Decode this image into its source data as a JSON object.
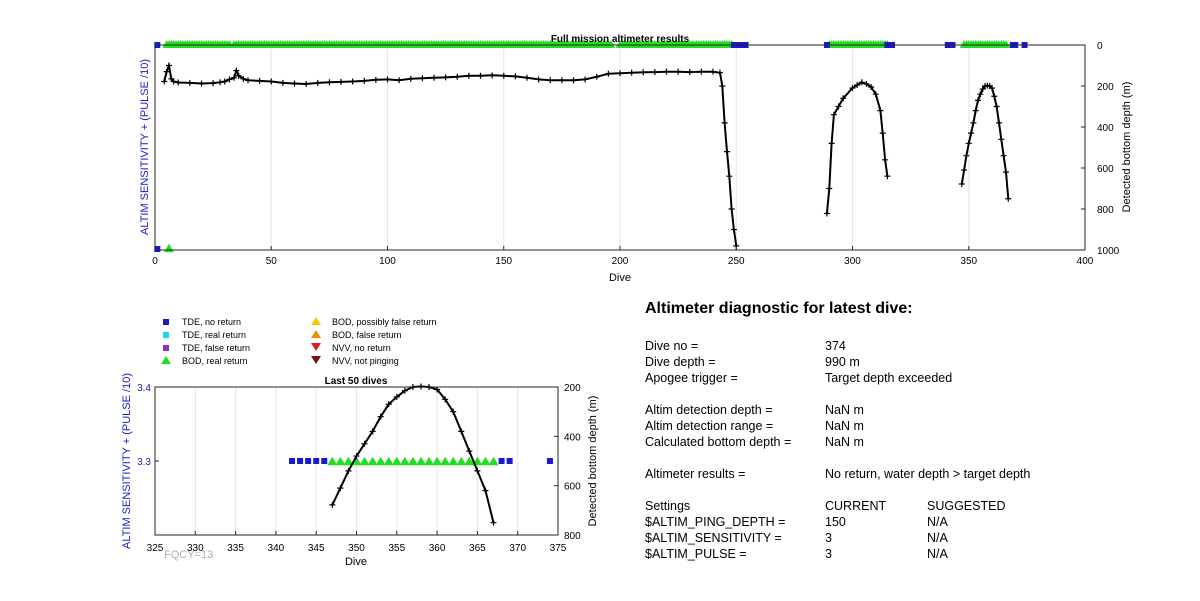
{
  "chart_data": [
    {
      "type": "line",
      "title": "Full mission altimeter results",
      "xlabel": "Dive",
      "ylabel_left": "ALTIM SENSITIVITY + (PULSE /10)",
      "ylabel_right": "Detected bottom depth (m)",
      "xlim": [
        0,
        400
      ],
      "ylim_right": [
        1000,
        0
      ],
      "x_ticks": [
        "0",
        "50",
        "100",
        "150",
        "200",
        "250",
        "300",
        "350",
        "400"
      ],
      "y_right_ticks": [
        "0",
        "200",
        "400",
        "600",
        "800",
        "1000"
      ],
      "grid": "vertical",
      "series": [
        {
          "name": "Detected bottom depth",
          "color": "#000000",
          "segments": [
            [
              [
                4,
                178
              ],
              [
                5,
                130
              ],
              [
                6,
                100
              ],
              [
                7,
                165
              ],
              [
                8,
                178
              ],
              [
                10,
                183
              ],
              [
                15,
                185
              ],
              [
                20,
                188
              ],
              [
                25,
                186
              ],
              [
                28,
                182
              ],
              [
                30,
                178
              ],
              [
                32,
                168
              ],
              [
                34,
                160
              ],
              [
                35,
                125
              ],
              [
                36,
                150
              ],
              [
                38,
                165
              ],
              [
                40,
                172
              ],
              [
                45,
                175
              ],
              [
                50,
                178
              ],
              [
                55,
                185
              ],
              [
                60,
                188
              ],
              [
                65,
                190
              ],
              [
                70,
                185
              ],
              [
                75,
                182
              ],
              [
                80,
                180
              ],
              [
                85,
                178
              ],
              [
                90,
                175
              ],
              [
                95,
                170
              ],
              [
                100,
                168
              ],
              [
                105,
                172
              ],
              [
                110,
                165
              ],
              [
                115,
                162
              ],
              [
                120,
                160
              ],
              [
                125,
                158
              ],
              [
                130,
                155
              ],
              [
                135,
                150
              ],
              [
                140,
                150
              ],
              [
                145,
                148
              ],
              [
                150,
                150
              ],
              [
                155,
                153
              ],
              [
                160,
                160
              ],
              [
                165,
                168
              ],
              [
                170,
                172
              ],
              [
                175,
                172
              ],
              [
                180,
                172
              ],
              [
                185,
                168
              ],
              [
                190,
                155
              ],
              [
                195,
                140
              ],
              [
                200,
                138
              ],
              [
                205,
                135
              ],
              [
                210,
                133
              ],
              [
                215,
                132
              ],
              [
                220,
                130
              ],
              [
                225,
                130
              ],
              [
                230,
                132
              ],
              [
                235,
                130
              ],
              [
                240,
                130
              ],
              [
                243,
                135
              ],
              [
                244,
                200
              ],
              [
                245,
                380
              ],
              [
                246,
                520
              ],
              [
                247,
                640
              ],
              [
                248,
                800
              ],
              [
                249,
                900
              ],
              [
                250,
                980
              ]
            ],
            [
              [
                289,
                822
              ],
              [
                290,
                700
              ],
              [
                291,
                480
              ],
              [
                292,
                340
              ],
              [
                294,
                300
              ],
              [
                296,
                260
              ],
              [
                300,
                210
              ],
              [
                302,
                195
              ],
              [
                304,
                182
              ],
              [
                306,
                190
              ],
              [
                308,
                205
              ],
              [
                310,
                240
              ],
              [
                312,
                320
              ],
              [
                313,
                430
              ],
              [
                314,
                560
              ],
              [
                315,
                640
              ]
            ],
            [
              [
                347,
                678
              ],
              [
                348,
                610
              ],
              [
                349,
                540
              ],
              [
                350,
                480
              ],
              [
                351,
                430
              ],
              [
                352,
                380
              ],
              [
                353,
                320
              ],
              [
                354,
                270
              ],
              [
                355,
                240
              ],
              [
                356,
                215
              ],
              [
                357,
                200
              ],
              [
                358,
                198
              ],
              [
                359,
                200
              ],
              [
                360,
                210
              ],
              [
                361,
                250
              ],
              [
                362,
                300
              ],
              [
                363,
                380
              ],
              [
                364,
                460
              ],
              [
                365,
                540
              ],
              [
                366,
                620
              ],
              [
                367,
                750
              ]
            ]
          ]
        },
        {
          "name": "BOD, real return",
          "color": "#22dd22",
          "x_ranges": [
            [
              5,
              32
            ],
            [
              34,
              196
            ],
            [
              200,
              248
            ],
            [
              290,
              315
            ],
            [
              348,
              366
            ]
          ],
          "extra_x": [
            6
          ],
          "y_depth": 0
        },
        {
          "name": "TDE, no return",
          "color": "#1a1acc",
          "x": [
            1,
            249,
            250,
            251,
            252,
            253,
            254,
            289,
            315,
            316,
            317,
            341,
            342,
            343,
            369,
            370,
            374
          ],
          "y_depth": 0
        }
      ]
    },
    {
      "type": "line",
      "title": "Last 50 dives",
      "xlabel": "Dive",
      "ylabel_left": "ALTIM SENSITIVITY + (PULSE /10)",
      "ylabel_right": "Detected bottom depth (m)",
      "xlim": [
        325,
        375
      ],
      "ylim_left": [
        3.2,
        3.4
      ],
      "ylim_right": [
        800,
        200
      ],
      "x_ticks": [
        "325",
        "330",
        "335",
        "340",
        "345",
        "350",
        "355",
        "360",
        "365",
        "370",
        "375"
      ],
      "y_left_ticks": [
        "3.3",
        "3.4"
      ],
      "y_right_ticks": [
        "200",
        "400",
        "600",
        "800"
      ],
      "grid": "vertical",
      "series": [
        {
          "name": "Detected bottom depth",
          "color": "#000000",
          "points": [
            [
              347,
              678
            ],
            [
              348,
              610
            ],
            [
              349,
              540
            ],
            [
              350,
              480
            ],
            [
              351,
              430
            ],
            [
              352,
              380
            ],
            [
              353,
              320
            ],
            [
              354,
              270
            ],
            [
              355,
              240
            ],
            [
              356,
              215
            ],
            [
              357,
              200
            ],
            [
              358,
              198
            ],
            [
              359,
              200
            ],
            [
              360,
              210
            ],
            [
              361,
              250
            ],
            [
              362,
              300
            ],
            [
              363,
              380
            ],
            [
              364,
              460
            ],
            [
              365,
              540
            ],
            [
              366,
              620
            ],
            [
              367,
              750
            ]
          ]
        },
        {
          "name": "TDE, no return",
          "color": "#1a1acc",
          "x": [
            342,
            343,
            344,
            345,
            346,
            368,
            369,
            374
          ],
          "y_value": 3.3
        },
        {
          "name": "BOD, real return",
          "color": "#22dd22",
          "x": [
            347,
            348,
            349,
            350,
            351,
            352,
            353,
            354,
            355,
            356,
            357,
            358,
            359,
            360,
            361,
            362,
            363,
            364,
            365,
            366,
            367
          ],
          "y_value": 3.3
        }
      ]
    }
  ],
  "fqcy_label": "FQCY=13",
  "legend": {
    "items": [
      {
        "label": "TDE, no return",
        "shape": "square",
        "color": "#1a1acc"
      },
      {
        "label": "TDE, real return",
        "shape": "square",
        "color": "#22d3ee"
      },
      {
        "label": "TDE, false return",
        "shape": "square",
        "color": "#8b2fc9"
      },
      {
        "label": "BOD, real return",
        "shape": "triangle-up",
        "color": "#22dd22"
      },
      {
        "label": "BOD, possibly false return",
        "shape": "triangle-up",
        "color": "#f5c800"
      },
      {
        "label": "BOD, false return",
        "shape": "triangle-up",
        "color": "#f08c00"
      },
      {
        "label": "NVV, no return",
        "shape": "triangle-down",
        "color": "#e02020"
      },
      {
        "label": "NVV, not pinging",
        "shape": "triangle-down",
        "color": "#7a1010"
      }
    ]
  },
  "diagnostic": {
    "title": "Altimeter diagnostic for latest dive:",
    "dive_no_label": "Dive no =",
    "dive_no_value": "374",
    "dive_depth_label": "Dive depth =",
    "dive_depth_value": "990 m",
    "apogee_label": "Apogee trigger =",
    "apogee_value": "Target depth exceeded",
    "altim_det_depth_label": "Altim detection depth =",
    "altim_det_depth_value": "NaN m",
    "altim_det_range_label": "Altim detection range =",
    "altim_det_range_value": "NaN m",
    "calc_bottom_label": "Calculated bottom depth =",
    "calc_bottom_value": "NaN m",
    "results_label": "Altimeter results =",
    "results_value": "No return, water depth > target depth",
    "settings_label": "Settings",
    "current_label": "CURRENT",
    "suggested_label": "SUGGESTED",
    "ping_depth_label": "$ALTIM_PING_DEPTH =",
    "ping_depth_current": "150",
    "ping_depth_suggested": "N/A",
    "sensitivity_label": "$ALTIM_SENSITIVITY =",
    "sensitivity_current": "3",
    "sensitivity_suggested": "N/A",
    "pulse_label": "$ALTIM_PULSE =",
    "pulse_current": "3",
    "pulse_suggested": "N/A"
  }
}
